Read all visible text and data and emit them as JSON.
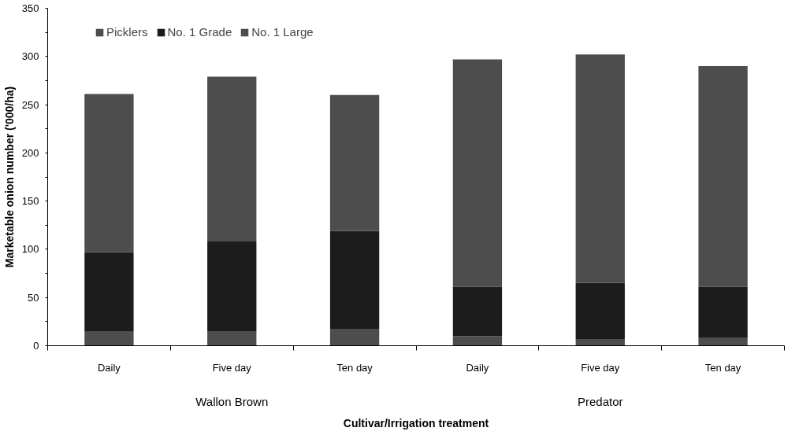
{
  "chart_data": {
    "type": "bar",
    "stacked": true,
    "xlabel": "Cultivar/Irrigation treatment",
    "ylabel": "Marketable onion number ('000/ha)",
    "categories": [
      "Daily",
      "Five day",
      "Ten day",
      "Daily",
      "Five day",
      "Ten day"
    ],
    "annotations": [
      "Wallon Brown",
      "Predator"
    ],
    "series": [
      {
        "name": "Picklers",
        "color": "#4d4d4d",
        "values": [
          15,
          15,
          17,
          10,
          7,
          8
        ]
      },
      {
        "name": "No. 1 Grade",
        "color": "#1c1c1c",
        "values": [
          82,
          93,
          102,
          51,
          58,
          53
        ]
      },
      {
        "name": "No. 1 Large",
        "color": "#4d4d4d",
        "values": [
          164,
          171,
          141,
          236,
          237,
          229
        ]
      }
    ],
    "ylim": [
      0,
      350
    ],
    "yticks": [
      0,
      50,
      100,
      150,
      200,
      250,
      300,
      350
    ],
    "grid": false,
    "legend": "top left"
  }
}
